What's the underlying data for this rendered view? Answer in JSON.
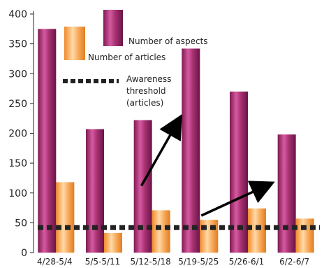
{
  "chart_data": {
    "type": "bar",
    "title": "",
    "xlabel": "",
    "ylabel": "",
    "categories": [
      "4/28-5/4",
      "5/5-5/11",
      "5/12-5/18",
      "5/19-5/25",
      "5/26-6/1",
      "6/2-6/7"
    ],
    "series": [
      {
        "name": "Number of aspects",
        "values": [
          375,
          207,
          222,
          342,
          270,
          198
        ],
        "color": "#9b2a6b"
      },
      {
        "name": "Number of articles",
        "values": [
          118,
          33,
          71,
          55,
          74,
          57
        ],
        "color": "#f5a44f"
      }
    ],
    "threshold": {
      "name": "Awareness threshold (articles)",
      "value": 42
    },
    "yticks": [
      "0",
      "50",
      "100",
      "150",
      "200",
      "250",
      "300",
      "350",
      "400"
    ],
    "ylim": [
      0,
      400
    ],
    "grid": false,
    "legend_position": "top-center",
    "annotations": [
      {
        "type": "arrow",
        "from": [
          2.25,
          112
        ],
        "to": [
          3.0,
          218
        ]
      },
      {
        "type": "arrow",
        "from": [
          3.5,
          62
        ],
        "to": [
          4.85,
          112
        ]
      }
    ]
  }
}
